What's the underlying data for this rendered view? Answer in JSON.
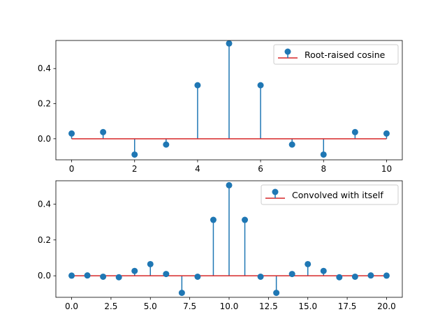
{
  "chart_data": [
    {
      "type": "stem",
      "x": [
        0,
        1,
        2,
        3,
        4,
        5,
        6,
        7,
        8,
        9,
        10
      ],
      "values": [
        0.03,
        0.038,
        -0.09,
        -0.033,
        0.305,
        0.543,
        0.305,
        -0.033,
        -0.09,
        0.038,
        0.03
      ],
      "legend": "Root-raised cosine",
      "legend_position": "top-right",
      "xlim": [
        -0.5,
        10.5
      ],
      "ylim": [
        -0.12,
        0.56
      ],
      "xticks": [
        0,
        2,
        4,
        6,
        8,
        10
      ],
      "xtick_labels": [
        "0",
        "2",
        "4",
        "6",
        "8",
        "10"
      ],
      "yticks": [
        0.0,
        0.2,
        0.4
      ],
      "ytick_labels": [
        "0.0",
        "0.2",
        "0.4"
      ],
      "colors": {
        "stem": "#1f77b4",
        "baseline": "#d62728"
      }
    },
    {
      "type": "stem",
      "x": [
        0,
        1,
        2,
        3,
        4,
        5,
        6,
        7,
        8,
        9,
        10,
        11,
        12,
        13,
        14,
        15,
        16,
        17,
        18,
        19,
        20
      ],
      "values": [
        0.001,
        0.002,
        -0.005,
        -0.008,
        0.027,
        0.065,
        0.01,
        -0.095,
        -0.005,
        0.312,
        0.505,
        0.312,
        -0.005,
        -0.095,
        0.01,
        0.065,
        0.027,
        -0.008,
        -0.005,
        0.002,
        0.001
      ],
      "legend": "Convolved with itself",
      "legend_position": "top-right",
      "xlim": [
        -1,
        21
      ],
      "ylim": [
        -0.12,
        0.53
      ],
      "xticks": [
        0,
        2.5,
        5,
        7.5,
        10,
        12.5,
        15,
        17.5,
        20
      ],
      "xtick_labels": [
        "0.0",
        "2.5",
        "5.0",
        "7.5",
        "10.0",
        "12.5",
        "15.0",
        "17.5",
        "20.0"
      ],
      "yticks": [
        0.0,
        0.2,
        0.4
      ],
      "ytick_labels": [
        "0.0",
        "0.2",
        "0.4"
      ],
      "colors": {
        "stem": "#1f77b4",
        "baseline": "#d62728"
      }
    }
  ]
}
